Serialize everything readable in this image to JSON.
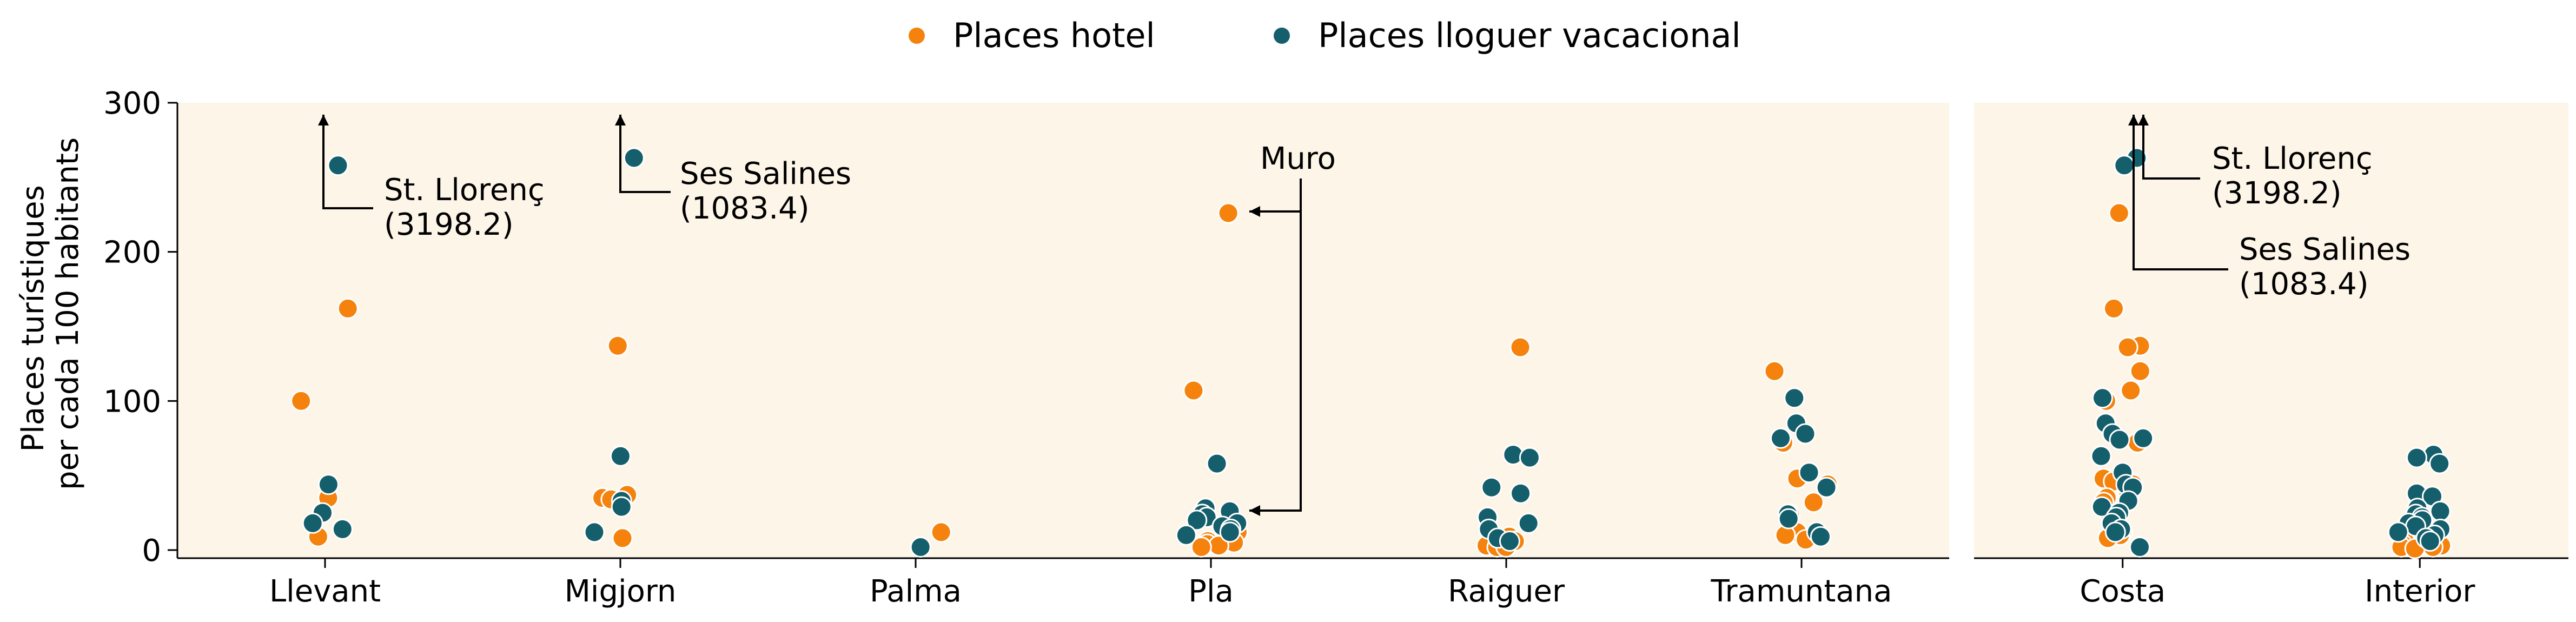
{
  "chart_data": {
    "type": "scatter",
    "legend": {
      "placement": "top-center",
      "entries": [
        {
          "name": "Places hotel",
          "color": "#f5820d"
        },
        {
          "name": "Places lloguer vacacional",
          "color": "#155e6b"
        }
      ]
    },
    "ylabel": [
      "Places turístiques",
      "per cada 100 habitants"
    ],
    "ylim": [
      0,
      300
    ],
    "yticks": [
      0,
      100,
      200,
      300
    ],
    "background": "#fdf5e8",
    "panels": [
      {
        "categories": [
          "Llevant",
          "Migjorn",
          "Palma",
          "Pla",
          "Raiguer",
          "Tramuntana"
        ],
        "series": [
          {
            "name": "Places hotel",
            "points": [
              {
                "x": "Llevant",
                "y": 162
              },
              {
                "x": "Llevant",
                "y": 100
              },
              {
                "x": "Llevant",
                "y": 35
              },
              {
                "x": "Llevant",
                "y": 9
              },
              {
                "x": "Migjorn",
                "y": 137
              },
              {
                "x": "Migjorn",
                "y": 37
              },
              {
                "x": "Migjorn",
                "y": 35
              },
              {
                "x": "Migjorn",
                "y": 34
              },
              {
                "x": "Migjorn",
                "y": 8
              },
              {
                "x": "Palma",
                "y": 12
              },
              {
                "x": "Pla",
                "y": 226
              },
              {
                "x": "Pla",
                "y": 107
              },
              {
                "x": "Pla",
                "y": 12
              },
              {
                "x": "Pla",
                "y": 8
              },
              {
                "x": "Pla",
                "y": 6
              },
              {
                "x": "Pla",
                "y": 5
              },
              {
                "x": "Pla",
                "y": 4
              },
              {
                "x": "Pla",
                "y": 3
              },
              {
                "x": "Pla",
                "y": 2
              },
              {
                "x": "Raiguer",
                "y": 136
              },
              {
                "x": "Raiguer",
                "y": 9
              },
              {
                "x": "Raiguer",
                "y": 6
              },
              {
                "x": "Raiguer",
                "y": 4
              },
              {
                "x": "Raiguer",
                "y": 3
              },
              {
                "x": "Raiguer",
                "y": 2
              },
              {
                "x": "Raiguer",
                "y": 2
              },
              {
                "x": "Tramuntana",
                "y": 120
              },
              {
                "x": "Tramuntana",
                "y": 72
              },
              {
                "x": "Tramuntana",
                "y": 48
              },
              {
                "x": "Tramuntana",
                "y": 44
              },
              {
                "x": "Tramuntana",
                "y": 32
              },
              {
                "x": "Tramuntana",
                "y": 24
              },
              {
                "x": "Tramuntana",
                "y": 12
              },
              {
                "x": "Tramuntana",
                "y": 10
              },
              {
                "x": "Tramuntana",
                "y": 7
              }
            ]
          },
          {
            "name": "Places lloguer vacacional",
            "points": [
              {
                "x": "Llevant",
                "y": 258
              },
              {
                "x": "Llevant",
                "y": 44
              },
              {
                "x": "Llevant",
                "y": 25
              },
              {
                "x": "Llevant",
                "y": 18
              },
              {
                "x": "Llevant",
                "y": 14
              },
              {
                "x": "Migjorn",
                "y": 263
              },
              {
                "x": "Migjorn",
                "y": 63
              },
              {
                "x": "Migjorn",
                "y": 33
              },
              {
                "x": "Migjorn",
                "y": 29
              },
              {
                "x": "Migjorn",
                "y": 12
              },
              {
                "x": "Palma",
                "y": 2
              },
              {
                "x": "Pla",
                "y": 58
              },
              {
                "x": "Pla",
                "y": 28
              },
              {
                "x": "Pla",
                "y": 26
              },
              {
                "x": "Pla",
                "y": 24
              },
              {
                "x": "Pla",
                "y": 22
              },
              {
                "x": "Pla",
                "y": 20
              },
              {
                "x": "Pla",
                "y": 18
              },
              {
                "x": "Pla",
                "y": 16
              },
              {
                "x": "Pla",
                "y": 14
              },
              {
                "x": "Pla",
                "y": 12
              },
              {
                "x": "Pla",
                "y": 10
              },
              {
                "x": "Raiguer",
                "y": 64
              },
              {
                "x": "Raiguer",
                "y": 62
              },
              {
                "x": "Raiguer",
                "y": 42
              },
              {
                "x": "Raiguer",
                "y": 38
              },
              {
                "x": "Raiguer",
                "y": 22
              },
              {
                "x": "Raiguer",
                "y": 18
              },
              {
                "x": "Raiguer",
                "y": 14
              },
              {
                "x": "Raiguer",
                "y": 8
              },
              {
                "x": "Raiguer",
                "y": 6
              },
              {
                "x": "Tramuntana",
                "y": 102
              },
              {
                "x": "Tramuntana",
                "y": 85
              },
              {
                "x": "Tramuntana",
                "y": 78
              },
              {
                "x": "Tramuntana",
                "y": 75
              },
              {
                "x": "Tramuntana",
                "y": 52
              },
              {
                "x": "Tramuntana",
                "y": 42
              },
              {
                "x": "Tramuntana",
                "y": 24
              },
              {
                "x": "Tramuntana",
                "y": 21
              },
              {
                "x": "Tramuntana",
                "y": 12
              },
              {
                "x": "Tramuntana",
                "y": 9
              }
            ]
          }
        ],
        "annotations": [
          {
            "text": "St. Llorenç\n(3198.2)",
            "category": "Llevant",
            "series": "Places hotel",
            "off_chart": true
          },
          {
            "text": "Ses Salines\n(1083.4)",
            "category": "Migjorn",
            "series": "Places hotel",
            "off_chart": true
          },
          {
            "text": "Muro",
            "category": "Pla",
            "targets_y": [
              226,
              27
            ]
          }
        ]
      },
      {
        "categories": [
          "Costa",
          "Interior"
        ],
        "series": [
          {
            "name": "Places hotel",
            "points": [
              {
                "x": "Costa",
                "y": 226
              },
              {
                "x": "Costa",
                "y": 162
              },
              {
                "x": "Costa",
                "y": 137
              },
              {
                "x": "Costa",
                "y": 136
              },
              {
                "x": "Costa",
                "y": 120
              },
              {
                "x": "Costa",
                "y": 107
              },
              {
                "x": "Costa",
                "y": 100
              },
              {
                "x": "Costa",
                "y": 72
              },
              {
                "x": "Costa",
                "y": 48
              },
              {
                "x": "Costa",
                "y": 46
              },
              {
                "x": "Costa",
                "y": 44
              },
              {
                "x": "Costa",
                "y": 37
              },
              {
                "x": "Costa",
                "y": 35
              },
              {
                "x": "Costa",
                "y": 32
              },
              {
                "x": "Costa",
                "y": 24
              },
              {
                "x": "Costa",
                "y": 12
              },
              {
                "x": "Costa",
                "y": 10
              },
              {
                "x": "Costa",
                "y": 8
              },
              {
                "x": "Interior",
                "y": 12
              },
              {
                "x": "Interior",
                "y": 10
              },
              {
                "x": "Interior",
                "y": 9
              },
              {
                "x": "Interior",
                "y": 8
              },
              {
                "x": "Interior",
                "y": 6
              },
              {
                "x": "Interior",
                "y": 5
              },
              {
                "x": "Interior",
                "y": 4
              },
              {
                "x": "Interior",
                "y": 3
              },
              {
                "x": "Interior",
                "y": 2
              },
              {
                "x": "Interior",
                "y": 2
              },
              {
                "x": "Interior",
                "y": 1
              }
            ]
          },
          {
            "name": "Places lloguer vacacional",
            "points": [
              {
                "x": "Costa",
                "y": 263
              },
              {
                "x": "Costa",
                "y": 258
              },
              {
                "x": "Costa",
                "y": 102
              },
              {
                "x": "Costa",
                "y": 85
              },
              {
                "x": "Costa",
                "y": 78
              },
              {
                "x": "Costa",
                "y": 75
              },
              {
                "x": "Costa",
                "y": 74
              },
              {
                "x": "Costa",
                "y": 63
              },
              {
                "x": "Costa",
                "y": 52
              },
              {
                "x": "Costa",
                "y": 44
              },
              {
                "x": "Costa",
                "y": 42
              },
              {
                "x": "Costa",
                "y": 33
              },
              {
                "x": "Costa",
                "y": 29
              },
              {
                "x": "Costa",
                "y": 25
              },
              {
                "x": "Costa",
                "y": 22
              },
              {
                "x": "Costa",
                "y": 18
              },
              {
                "x": "Costa",
                "y": 14
              },
              {
                "x": "Costa",
                "y": 12
              },
              {
                "x": "Costa",
                "y": 2
              },
              {
                "x": "Interior",
                "y": 64
              },
              {
                "x": "Interior",
                "y": 62
              },
              {
                "x": "Interior",
                "y": 58
              },
              {
                "x": "Interior",
                "y": 38
              },
              {
                "x": "Interior",
                "y": 36
              },
              {
                "x": "Interior",
                "y": 28
              },
              {
                "x": "Interior",
                "y": 26
              },
              {
                "x": "Interior",
                "y": 24
              },
              {
                "x": "Interior",
                "y": 22
              },
              {
                "x": "Interior",
                "y": 20
              },
              {
                "x": "Interior",
                "y": 18
              },
              {
                "x": "Interior",
                "y": 16
              },
              {
                "x": "Interior",
                "y": 14
              },
              {
                "x": "Interior",
                "y": 12
              },
              {
                "x": "Interior",
                "y": 10
              },
              {
                "x": "Interior",
                "y": 8
              },
              {
                "x": "Interior",
                "y": 6
              }
            ]
          }
        ],
        "annotations": [
          {
            "text": "St. Llorenç\n(3198.2)",
            "category": "Costa",
            "off_chart": true
          },
          {
            "text": "Ses Salines\n(1083.4)",
            "category": "Costa",
            "off_chart": true
          }
        ]
      }
    ]
  }
}
